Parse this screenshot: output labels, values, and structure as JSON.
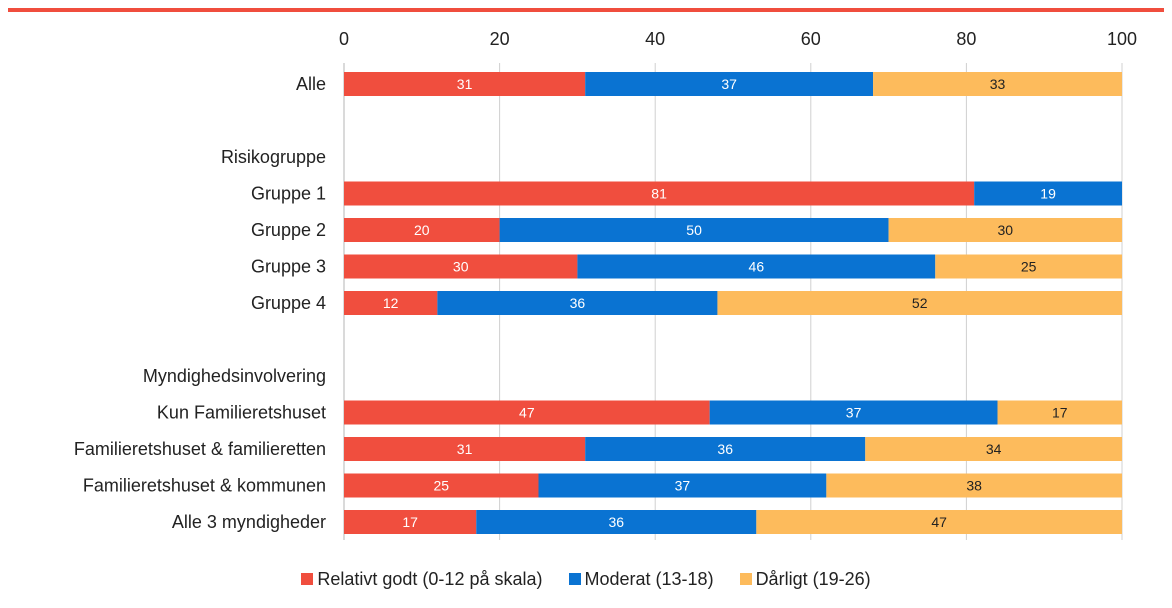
{
  "chart_data": {
    "type": "bar",
    "orientation": "horizontal",
    "stacked": true,
    "xlim": [
      0,
      100
    ],
    "xticks": [
      0,
      20,
      40,
      60,
      80,
      100
    ],
    "grid": true,
    "legend_position": "bottom",
    "rows": [
      {
        "label": "Alle",
        "values": [
          31,
          37,
          33
        ]
      },
      {
        "label": "",
        "values": null
      },
      {
        "label": "Risikogruppe",
        "values": null
      },
      {
        "label": "Gruppe 1",
        "values": [
          81,
          19,
          null
        ]
      },
      {
        "label": "Gruppe 2",
        "values": [
          20,
          50,
          30
        ]
      },
      {
        "label": "Gruppe 3",
        "values": [
          30,
          46,
          25
        ]
      },
      {
        "label": "Gruppe 4",
        "values": [
          12,
          36,
          52
        ]
      },
      {
        "label": "",
        "values": null
      },
      {
        "label": "Myndighedsinvolvering",
        "values": null
      },
      {
        "label": "Kun Familieretshuset",
        "values": [
          47,
          37,
          17
        ]
      },
      {
        "label": "Familieretshuset & familieretten",
        "values": [
          31,
          36,
          34
        ]
      },
      {
        "label": "Familieretshuset & kommunen",
        "values": [
          25,
          37,
          38
        ]
      },
      {
        "label": "Alle 3 myndigheder",
        "values": [
          17,
          36,
          47
        ]
      }
    ],
    "series": [
      {
        "name": "Relativt godt (0-12 på skala)",
        "color": "#f04e3e",
        "label_color": "#ffffff"
      },
      {
        "name": "Moderat (13-18)",
        "color": "#0a73d2",
        "label_color": "#ffffff"
      },
      {
        "name": "Dårligt (19-26)",
        "color": "#fdbb5c",
        "label_color": "#222222"
      }
    ]
  }
}
